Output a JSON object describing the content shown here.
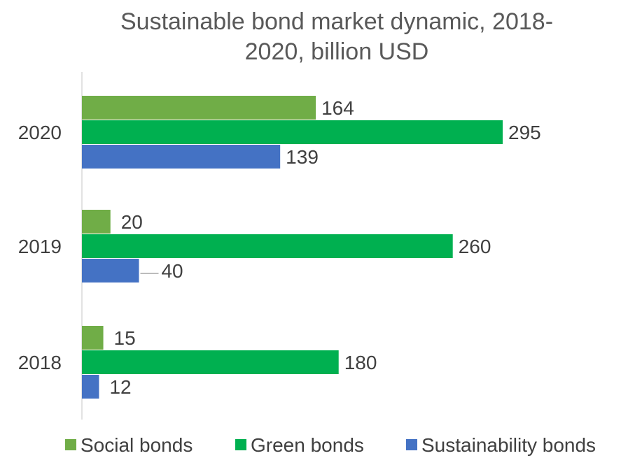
{
  "chart_data": {
    "type": "bar",
    "orientation": "horizontal",
    "title_lines": [
      "Sustainable bond market dynamic, 2018-",
      "2020, billion USD"
    ],
    "categories": [
      "2020",
      "2019",
      "2018"
    ],
    "series": [
      {
        "name": "Social bonds",
        "color": "#70ad47",
        "values": [
          164,
          20,
          15
        ]
      },
      {
        "name": "Green bonds",
        "color": "#00b050",
        "values": [
          295,
          260,
          180
        ]
      },
      {
        "name": "Sustainability bonds",
        "color": "#4472c4",
        "values": [
          139,
          40,
          12
        ]
      }
    ],
    "xlim": [
      0,
      300
    ],
    "grid": false,
    "legend_position": "bottom"
  }
}
